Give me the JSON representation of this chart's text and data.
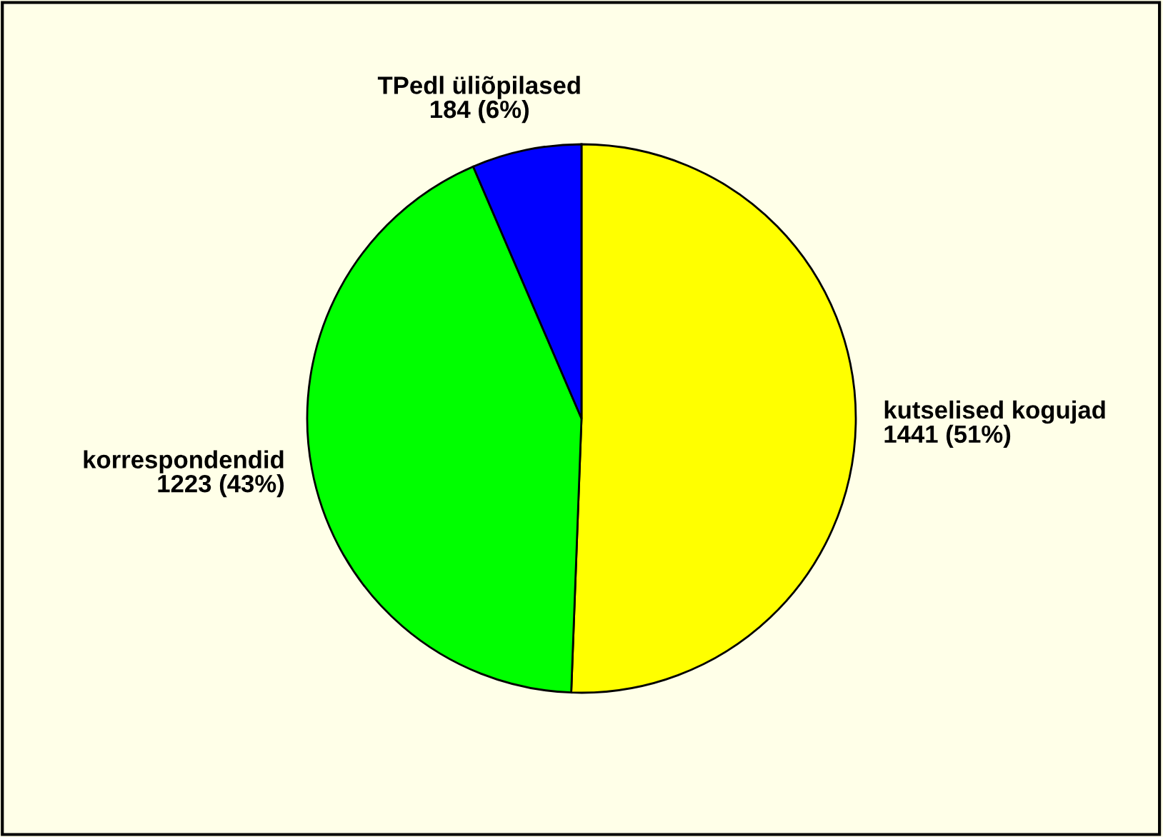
{
  "chart_data": {
    "type": "pie",
    "categories": [
      "kutselised kogujad",
      "korrespondendid",
      "TPedl üliõpilased"
    ],
    "values": [
      1441,
      1223,
      184
    ],
    "colors": [
      "#ffff00",
      "#00ff00",
      "#0000ff"
    ],
    "value_labels": [
      "1441 (51%)",
      "1223 (43%)",
      "184 (6%)"
    ]
  }
}
